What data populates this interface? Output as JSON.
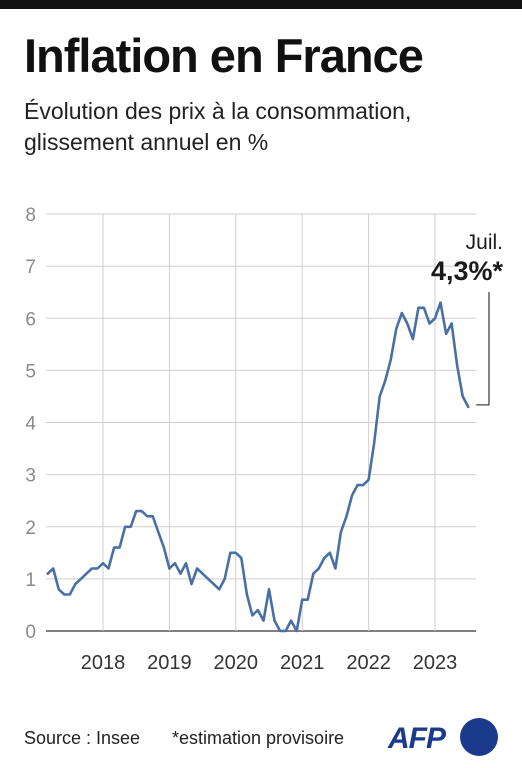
{
  "title": "Inflation en France",
  "subtitle": "Évolution des prix à la consommation, glissement annuel en %",
  "footer": {
    "source": "Source : Insee",
    "note": "*estimation provisoire",
    "logo": "AFP"
  },
  "colors": {
    "line": "#4a6fa5",
    "grid": "#cfcfcf",
    "axis_text": "#8a8a8a",
    "text": "#1a1a1a",
    "logo": "#1b3a8c"
  },
  "chart_data": {
    "type": "line",
    "title": "Inflation en France",
    "subtitle": "Évolution des prix à la consommation, glissement annuel en %",
    "xlabel": "",
    "ylabel": "",
    "ylim": [
      0,
      8
    ],
    "y_ticks": [
      "0",
      "1",
      "2",
      "3",
      "4",
      "5",
      "6",
      "7",
      "8"
    ],
    "x_ticks": [
      "2018",
      "2019",
      "2020",
      "2021",
      "2022",
      "2023"
    ],
    "grid": true,
    "annotation": {
      "month": "Juil.",
      "value": "4,3%*"
    },
    "series": [
      {
        "x": [
          "2017-03",
          "2017-04",
          "2017-05",
          "2017-06",
          "2017-07",
          "2017-08",
          "2017-09",
          "2017-10",
          "2017-11",
          "2017-12",
          "2018-01",
          "2018-02",
          "2018-03",
          "2018-04",
          "2018-05",
          "2018-06",
          "2018-07",
          "2018-08",
          "2018-09",
          "2018-10",
          "2018-11",
          "2018-12",
          "2019-01",
          "2019-02",
          "2019-03",
          "2019-04",
          "2019-05",
          "2019-06",
          "2019-07",
          "2019-08",
          "2019-09",
          "2019-10",
          "2019-11",
          "2019-12",
          "2020-01",
          "2020-02",
          "2020-03",
          "2020-04",
          "2020-05",
          "2020-06",
          "2020-07",
          "2020-08",
          "2020-09",
          "2020-10",
          "2020-11",
          "2020-12",
          "2021-01",
          "2021-02",
          "2021-03",
          "2021-04",
          "2021-05",
          "2021-06",
          "2021-07",
          "2021-08",
          "2021-09",
          "2021-10",
          "2021-11",
          "2021-12",
          "2022-01",
          "2022-02",
          "2022-03",
          "2022-04",
          "2022-05",
          "2022-06",
          "2022-07",
          "2022-08",
          "2022-09",
          "2022-10",
          "2022-11",
          "2022-12",
          "2023-01",
          "2023-02",
          "2023-03",
          "2023-04",
          "2023-05",
          "2023-06",
          "2023-07"
        ],
        "values": [
          1.1,
          1.2,
          0.8,
          0.7,
          0.7,
          0.9,
          1.0,
          1.1,
          1.2,
          1.2,
          1.3,
          1.2,
          1.6,
          1.6,
          2.0,
          2.0,
          2.3,
          2.3,
          2.2,
          2.2,
          1.9,
          1.6,
          1.2,
          1.3,
          1.1,
          1.3,
          0.9,
          1.2,
          1.1,
          1.0,
          0.9,
          0.8,
          1.0,
          1.5,
          1.5,
          1.4,
          0.7,
          0.3,
          0.4,
          0.2,
          0.8,
          0.2,
          0.0,
          0.0,
          0.2,
          0.0,
          0.6,
          0.6,
          1.1,
          1.2,
          1.4,
          1.5,
          1.2,
          1.9,
          2.2,
          2.6,
          2.8,
          2.8,
          2.9,
          3.6,
          4.5,
          4.8,
          5.2,
          5.8,
          6.1,
          5.9,
          5.6,
          6.2,
          6.2,
          5.9,
          6.0,
          6.3,
          5.7,
          5.9,
          5.1,
          4.5,
          4.3
        ]
      }
    ]
  }
}
